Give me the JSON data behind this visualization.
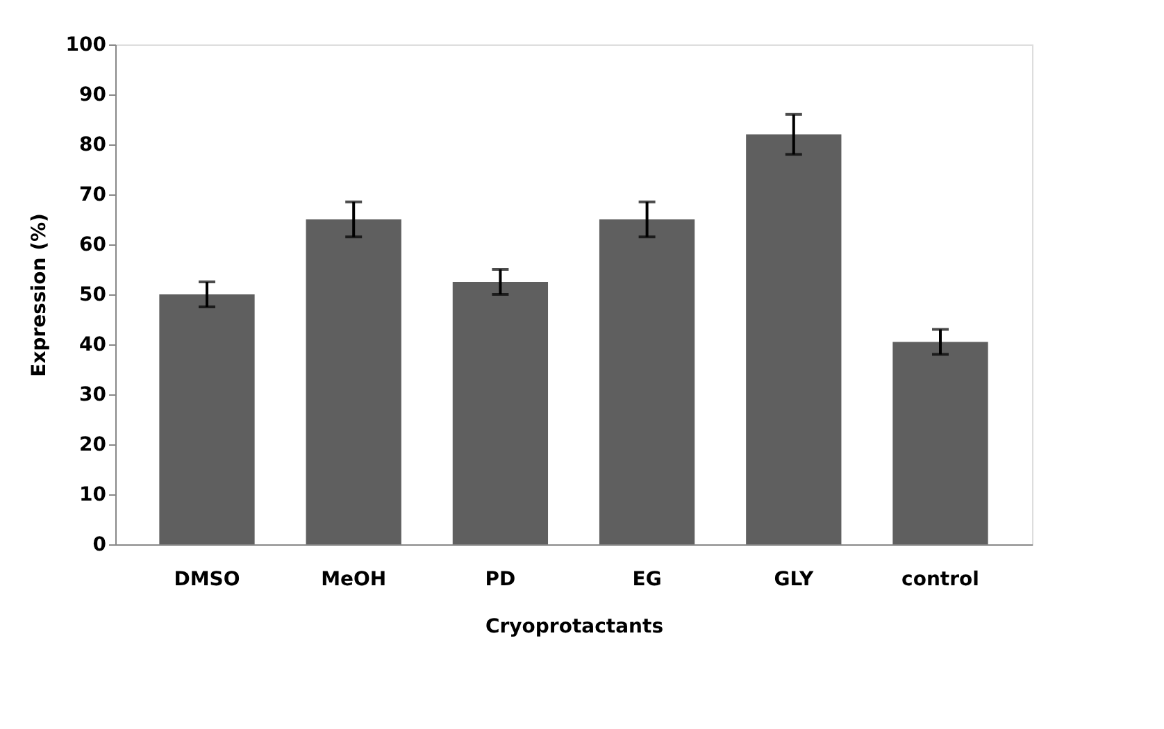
{
  "chart_data": {
    "type": "bar",
    "xlabel": "Cryoprotactants",
    "ylabel": "Expression (%)",
    "categories": [
      "DMSO",
      "MeOH",
      "PD",
      "EG",
      "GLY",
      "control"
    ],
    "values": [
      50,
      65,
      52.5,
      65,
      82,
      40.5
    ],
    "errors": [
      2.5,
      3.5,
      2.5,
      3.5,
      4,
      2.5
    ],
    "color": "#5f5f5f",
    "ylim": [
      0,
      100
    ],
    "yticks": [
      0,
      10,
      20,
      30,
      40,
      50,
      60,
      70,
      80,
      90,
      100
    ],
    "grid": false
  }
}
